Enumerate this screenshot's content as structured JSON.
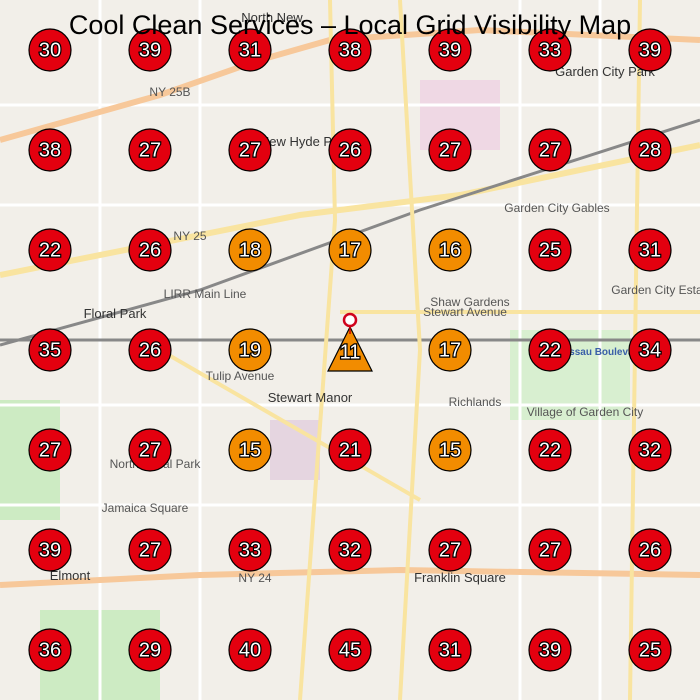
{
  "header": {
    "title": "Cool Clean Services – Local Grid Visibility Map"
  },
  "grid": {
    "rows": [
      [
        {
          "value": 30,
          "color": "#e3000f"
        },
        {
          "value": 39,
          "color": "#e3000f"
        },
        {
          "value": 31,
          "color": "#e3000f"
        },
        {
          "value": 38,
          "color": "#e3000f"
        },
        {
          "value": 39,
          "color": "#e3000f"
        },
        {
          "value": 33,
          "color": "#e3000f"
        },
        {
          "value": 39,
          "color": "#e3000f"
        }
      ],
      [
        {
          "value": 38,
          "color": "#e3000f"
        },
        {
          "value": 27,
          "color": "#e3000f"
        },
        {
          "value": 27,
          "color": "#e3000f"
        },
        {
          "value": 26,
          "color": "#e3000f"
        },
        {
          "value": 27,
          "color": "#e3000f"
        },
        {
          "value": 27,
          "color": "#e3000f"
        },
        {
          "value": 28,
          "color": "#e3000f"
        }
      ],
      [
        {
          "value": 22,
          "color": "#e3000f"
        },
        {
          "value": 26,
          "color": "#e3000f"
        },
        {
          "value": 18,
          "color": "#f28c00"
        },
        {
          "value": 17,
          "color": "#f28c00"
        },
        {
          "value": 16,
          "color": "#f28c00"
        },
        {
          "value": 25,
          "color": "#e3000f"
        },
        {
          "value": 31,
          "color": "#e3000f"
        }
      ],
      [
        {
          "value": 35,
          "color": "#e3000f"
        },
        {
          "value": 26,
          "color": "#e3000f"
        },
        {
          "value": 19,
          "color": "#f28c00"
        },
        {
          "value": 11,
          "color": "#f28c00",
          "shape": "triangle"
        },
        {
          "value": 17,
          "color": "#f28c00"
        },
        {
          "value": 22,
          "color": "#e3000f"
        },
        {
          "value": 34,
          "color": "#e3000f"
        }
      ],
      [
        {
          "value": 27,
          "color": "#e3000f"
        },
        {
          "value": 27,
          "color": "#e3000f"
        },
        {
          "value": 15,
          "color": "#f28c00"
        },
        {
          "value": 21,
          "color": "#e3000f"
        },
        {
          "value": 15,
          "color": "#f28c00"
        },
        {
          "value": 22,
          "color": "#e3000f"
        },
        {
          "value": 32,
          "color": "#e3000f"
        }
      ],
      [
        {
          "value": 39,
          "color": "#e3000f"
        },
        {
          "value": 27,
          "color": "#e3000f"
        },
        {
          "value": 33,
          "color": "#e3000f"
        },
        {
          "value": 32,
          "color": "#e3000f"
        },
        {
          "value": 27,
          "color": "#e3000f"
        },
        {
          "value": 27,
          "color": "#e3000f"
        },
        {
          "value": 26,
          "color": "#e3000f"
        }
      ],
      [
        {
          "value": 36,
          "color": "#e3000f"
        },
        {
          "value": 29,
          "color": "#e3000f"
        },
        {
          "value": 40,
          "color": "#e3000f"
        },
        {
          "value": 45,
          "color": "#e3000f"
        },
        {
          "value": 31,
          "color": "#e3000f"
        },
        {
          "value": 39,
          "color": "#e3000f"
        },
        {
          "value": 25,
          "color": "#e3000f"
        }
      ]
    ]
  },
  "map_labels": [
    "North New",
    "Garden City Park",
    "NY 25B",
    "New Hyde Park",
    "NY 25",
    "LIRR Main Line",
    "Floral Park",
    "Stewart Manor",
    "Stewart Avenue",
    "Tulip Avenue",
    "Shaw Gardens",
    "Richlands",
    "Village of Garden City",
    "Garden City Gables",
    "Garden City Estates",
    "Nassau Boulevard",
    "Franklin Square",
    "Elmont",
    "NY 24",
    "Jamaica Square",
    "North Floral Park"
  ]
}
